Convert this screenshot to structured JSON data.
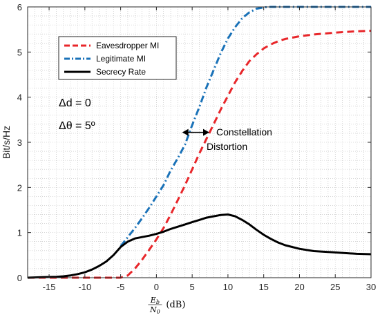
{
  "chart_data": {
    "type": "line",
    "xlabel_math": "Eb/N0",
    "xlabel_unit": "(dB)",
    "ylabel": "Bit/s/Hz",
    "xlim": [
      -18,
      30
    ],
    "ylim": [
      0,
      6
    ],
    "xticks": [
      -15,
      -10,
      -5,
      0,
      5,
      10,
      15,
      20,
      25,
      30
    ],
    "yticks": [
      0,
      1,
      2,
      3,
      4,
      5,
      6
    ],
    "grid": "minor-dotted",
    "legend_placement": "top-left",
    "series": [
      {
        "name": "Eavesdropper MI",
        "color": "#e8262a",
        "style": "dashed",
        "x": [
          -18,
          -15,
          -10,
          -5,
          -4,
          -3,
          -2,
          -1,
          0,
          1,
          2,
          3,
          4,
          5,
          6,
          7,
          8,
          9,
          10,
          11,
          12,
          13,
          14,
          15,
          16,
          17,
          18,
          20,
          22,
          25,
          28,
          30
        ],
        "y": [
          0,
          0,
          0,
          0,
          0.05,
          0.2,
          0.4,
          0.62,
          0.85,
          1.1,
          1.4,
          1.72,
          2.05,
          2.4,
          2.75,
          3.08,
          3.4,
          3.73,
          4.03,
          4.33,
          4.58,
          4.8,
          4.95,
          5.08,
          5.17,
          5.24,
          5.29,
          5.35,
          5.39,
          5.43,
          5.46,
          5.47
        ]
      },
      {
        "name": "Legitimate MI",
        "color": "#1a72b8",
        "style": "dashdot",
        "x": [
          -5,
          -4,
          -3,
          -2,
          -1,
          0,
          1,
          2,
          3,
          4,
          5,
          6,
          7,
          8,
          9,
          10,
          11,
          12,
          13,
          14,
          15,
          16,
          17,
          18,
          20,
          25,
          30
        ],
        "y": [
          0.7,
          0.9,
          1.1,
          1.32,
          1.55,
          1.8,
          2.05,
          2.38,
          2.65,
          2.95,
          3.38,
          3.78,
          4.22,
          4.6,
          4.98,
          5.3,
          5.55,
          5.75,
          5.88,
          5.96,
          5.99,
          6.0,
          6.0,
          6.0,
          6.0,
          6.0,
          6.0
        ]
      },
      {
        "name": "Secrecy Rate",
        "color": "#000000",
        "style": "solid",
        "x": [
          -18,
          -16,
          -14,
          -13,
          -12,
          -11,
          -10,
          -9,
          -8,
          -7,
          -6,
          -5,
          -4,
          -3,
          -2,
          -1,
          0,
          1,
          2,
          3,
          4,
          5,
          6,
          7,
          8,
          9,
          10,
          11,
          12,
          13,
          14,
          15,
          16,
          17,
          18,
          20,
          22,
          24,
          26,
          28,
          30
        ],
        "y": [
          0,
          0.01,
          0.02,
          0.03,
          0.05,
          0.08,
          0.12,
          0.18,
          0.26,
          0.36,
          0.5,
          0.68,
          0.8,
          0.87,
          0.9,
          0.93,
          0.97,
          1.02,
          1.08,
          1.13,
          1.18,
          1.23,
          1.28,
          1.33,
          1.36,
          1.39,
          1.4,
          1.36,
          1.28,
          1.18,
          1.06,
          0.95,
          0.86,
          0.78,
          0.72,
          0.64,
          0.59,
          0.57,
          0.55,
          0.53,
          0.52
        ]
      }
    ],
    "annotations": {
      "delta_d": "Δd = 0",
      "delta_theta": "Δθ = 5º",
      "arrow_label_line1": "Constellation",
      "arrow_label_line2": "Distortion",
      "arrow_x_from": 3.6,
      "arrow_x_to": 7.4,
      "arrow_y": 3.22
    }
  }
}
